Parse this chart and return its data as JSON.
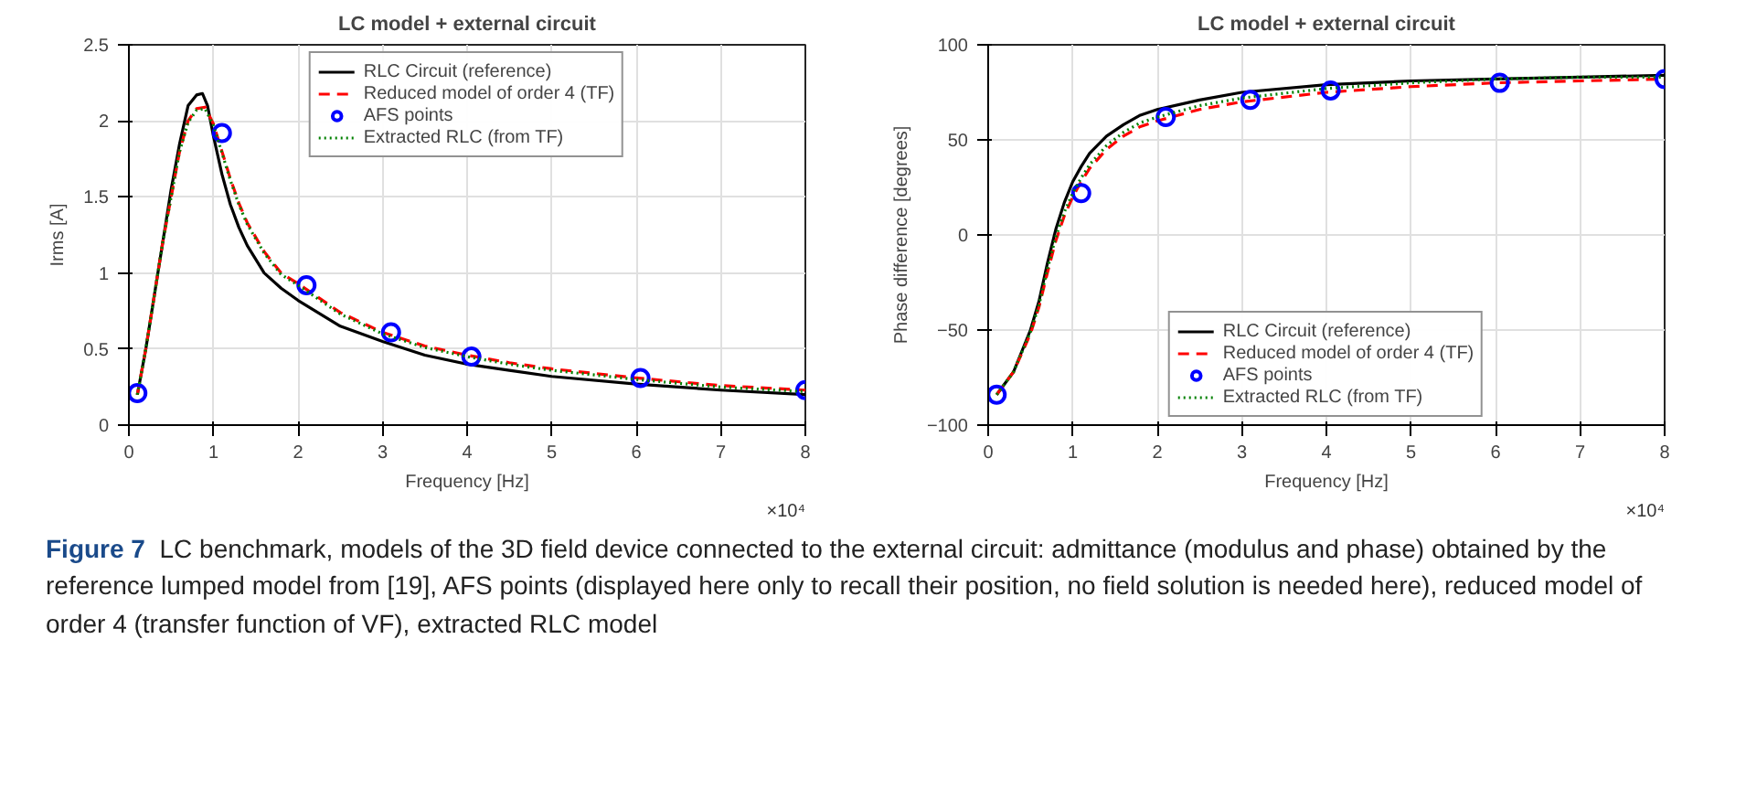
{
  "chart_data": [
    {
      "type": "line",
      "title": "LC model + external circuit",
      "xlabel": "Frequency [Hz]",
      "ylabel": "Irms [A]",
      "xlim": [
        0,
        8
      ],
      "xticks": [
        0,
        1,
        2,
        3,
        4,
        5,
        6,
        7,
        8
      ],
      "ylim": [
        0,
        2.5
      ],
      "yticks": [
        0,
        0.5,
        1,
        1.5,
        2,
        2.5
      ],
      "grid": true,
      "legend": "top",
      "annotations": [
        "×10⁴"
      ],
      "series": [
        {
          "name": "RLC Circuit (reference)",
          "color": "#000000",
          "line_style": "solid",
          "marker": "none",
          "x": [
            0.1,
            0.2,
            0.3,
            0.4,
            0.5,
            0.6,
            0.7,
            0.8,
            0.87,
            0.93,
            1.0,
            1.1,
            1.2,
            1.3,
            1.4,
            1.6,
            1.8,
            2.0,
            2.5,
            3.0,
            3.5,
            4.0,
            4.5,
            5.0,
            6.0,
            7.0,
            8.0
          ],
          "values": [
            0.2,
            0.5,
            0.85,
            1.2,
            1.55,
            1.85,
            2.1,
            2.17,
            2.18,
            2.1,
            1.9,
            1.65,
            1.45,
            1.3,
            1.18,
            1.0,
            0.9,
            0.82,
            0.65,
            0.55,
            0.46,
            0.4,
            0.36,
            0.32,
            0.27,
            0.23,
            0.2
          ]
        },
        {
          "name": "Reduced model of order 4 (TF)",
          "color": "#ff0000",
          "line_style": "dashed",
          "marker": "none",
          "x": [
            0.1,
            0.2,
            0.3,
            0.4,
            0.5,
            0.6,
            0.7,
            0.8,
            0.9,
            1.0,
            1.1,
            1.2,
            1.3,
            1.4,
            1.6,
            1.8,
            2.0,
            2.5,
            3.0,
            3.5,
            4.0,
            4.5,
            5.0,
            6.0,
            7.0,
            8.0
          ],
          "values": [
            0.2,
            0.5,
            0.85,
            1.2,
            1.5,
            1.8,
            2.0,
            2.08,
            2.09,
            1.98,
            1.8,
            1.62,
            1.46,
            1.33,
            1.14,
            1.0,
            0.93,
            0.74,
            0.61,
            0.52,
            0.46,
            0.41,
            0.37,
            0.31,
            0.26,
            0.23
          ]
        },
        {
          "name": "AFS points",
          "type": "scatter",
          "color": "#0000ff",
          "marker": "circle",
          "x": [
            0.1,
            1.1,
            2.1,
            3.1,
            4.05,
            6.05,
            8.0
          ],
          "values": [
            0.21,
            1.92,
            0.92,
            0.61,
            0.45,
            0.31,
            0.23
          ]
        },
        {
          "name": "Extracted RLC (from TF)",
          "color": "#008000",
          "line_style": "dotted",
          "marker": "none",
          "x": [
            0.1,
            0.2,
            0.3,
            0.4,
            0.5,
            0.6,
            0.7,
            0.8,
            0.9,
            1.0,
            1.1,
            1.2,
            1.3,
            1.4,
            1.6,
            1.8,
            2.0,
            2.5,
            3.0,
            3.5,
            4.0,
            4.5,
            5.0,
            6.0,
            7.0,
            8.0
          ],
          "values": [
            0.2,
            0.5,
            0.85,
            1.2,
            1.5,
            1.8,
            1.99,
            2.07,
            2.08,
            1.97,
            1.79,
            1.61,
            1.45,
            1.32,
            1.13,
            0.99,
            0.92,
            0.73,
            0.6,
            0.51,
            0.45,
            0.4,
            0.36,
            0.3,
            0.25,
            0.22
          ]
        }
      ]
    },
    {
      "type": "line",
      "title": "LC model + external circuit",
      "xlabel": "Frequency [Hz]",
      "ylabel": "Phase difference [degrees]",
      "xlim": [
        0,
        8
      ],
      "xticks": [
        0,
        1,
        2,
        3,
        4,
        5,
        6,
        7,
        8
      ],
      "ylim": [
        -100,
        100
      ],
      "yticks": [
        -100,
        -50,
        0,
        50,
        100
      ],
      "grid": true,
      "legend": "bottom",
      "annotations": [
        "×10⁴",
        "Figure 7",
        "LC benchmark, models of the 3D field device connected to the external circuit: admittance (modulus and phase) obtained by the reference lumped model from [19], AFS points (displayed here only to recall their position, no field solution is needed here), reduced model of order 4 (transfer function of VF), extracted RLC model"
      ],
      "series": [
        {
          "name": "RLC Circuit (reference)",
          "color": "#000000",
          "line_style": "solid",
          "marker": "none",
          "x": [
            0.1,
            0.3,
            0.5,
            0.6,
            0.7,
            0.8,
            0.9,
            1.0,
            1.1,
            1.2,
            1.4,
            1.6,
            1.8,
            2.0,
            2.5,
            3.0,
            4.0,
            5.0,
            6.0,
            7.0,
            8.0
          ],
          "values": [
            -84,
            -72,
            -50,
            -35,
            -15,
            3,
            17,
            28,
            36,
            43,
            52,
            58,
            63,
            66,
            71,
            75,
            79,
            81,
            82,
            83,
            84
          ]
        },
        {
          "name": "Reduced model of order 4 (TF)",
          "color": "#ff0000",
          "line_style": "dashed",
          "marker": "none",
          "x": [
            0.1,
            0.3,
            0.5,
            0.6,
            0.7,
            0.8,
            0.9,
            1.0,
            1.1,
            1.2,
            1.4,
            1.6,
            1.8,
            2.0,
            2.5,
            3.0,
            4.0,
            5.0,
            6.0,
            7.0,
            8.0
          ],
          "values": [
            -84,
            -72,
            -52,
            -38,
            -20,
            -3,
            10,
            20,
            28,
            35,
            45,
            52,
            57,
            60,
            66,
            70,
            75,
            78,
            80,
            81,
            82
          ]
        },
        {
          "name": "AFS points",
          "type": "scatter",
          "color": "#0000ff",
          "marker": "circle",
          "x": [
            0.1,
            1.1,
            2.1,
            3.1,
            4.05,
            6.05,
            8.0
          ],
          "values": [
            -84,
            22,
            62,
            71,
            76,
            80,
            82
          ]
        },
        {
          "name": "Extracted RLC (from TF)",
          "color": "#008000",
          "line_style": "dotted",
          "marker": "none",
          "x": [
            0.1,
            0.3,
            0.5,
            0.6,
            0.7,
            0.8,
            0.9,
            1.0,
            1.1,
            1.2,
            1.4,
            1.6,
            1.8,
            2.0,
            2.5,
            3.0,
            4.0,
            5.0,
            6.0,
            7.0,
            8.0
          ],
          "values": [
            -84,
            -72,
            -51,
            -37,
            -18,
            -1,
            12,
            22,
            30,
            37,
            47,
            54,
            59,
            62,
            68,
            72,
            77,
            80,
            82,
            83,
            83
          ]
        }
      ]
    }
  ]
}
